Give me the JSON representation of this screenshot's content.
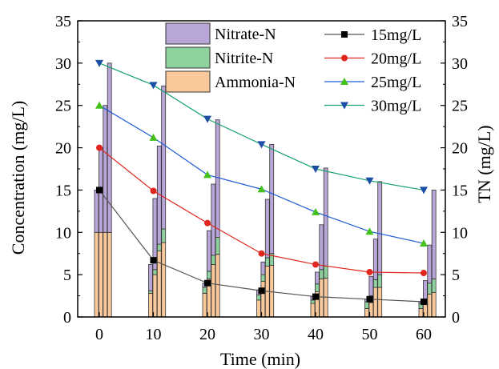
{
  "chart_data": {
    "type": "bar",
    "xlabel": "Time (min)",
    "ylabel": "Concentration (mg/L)",
    "y2label": "TN (mg/L)",
    "xlim": [
      -4,
      64
    ],
    "ylim": [
      0,
      35
    ],
    "y2lim": [
      0,
      35
    ],
    "x": [
      0,
      10,
      20,
      30,
      40,
      50,
      60
    ],
    "xticks": [
      "0",
      "10",
      "20",
      "30",
      "40",
      "50",
      "60"
    ],
    "yticks": [
      "0",
      "5",
      "10",
      "15",
      "20",
      "25",
      "30",
      "35"
    ],
    "bar_series": [
      {
        "name": "Ammonia-N",
        "color": "#f9c89b"
      },
      {
        "name": "Nitrite-N",
        "color": "#8fd19e"
      },
      {
        "name": "Nitrate-N",
        "color": "#b9a6d9"
      }
    ],
    "bar_groups": [
      {
        "initial": "15mg/L",
        "ammonia": [
          10,
          2.8,
          2.8,
          2.0,
          1.6,
          1.0,
          1.0
        ],
        "nitrite": [
          0,
          0.3,
          0.7,
          0.6,
          0.4,
          0.8,
          0.6
        ],
        "nitrate": [
          5,
          3.1,
          0.5,
          0.6,
          0.4,
          0.3,
          0.2
        ]
      },
      {
        "initial": "20mg/L",
        "ammonia": [
          10,
          5.0,
          4.5,
          4.2,
          3.0,
          1.7,
          1.5
        ],
        "nitrite": [
          0,
          0.6,
          0.9,
          0.8,
          0.9,
          0.8,
          0.6
        ],
        "nitrate": [
          10,
          8.4,
          4.8,
          1.5,
          1.4,
          2.3,
          2.2
        ]
      },
      {
        "initial": "25mg/L",
        "ammonia": [
          10,
          7.8,
          6.2,
          6.0,
          4.5,
          3.5,
          2.7
        ],
        "nitrite": [
          0,
          0.8,
          1.1,
          1.0,
          1.1,
          0.9,
          1.3
        ],
        "nitrate": [
          15,
          11.6,
          8.4,
          6.9,
          5.3,
          4.8,
          4.5
        ]
      },
      {
        "initial": "30mg/L",
        "ammonia": [
          10,
          8.8,
          7.4,
          6.1,
          4.6,
          3.5,
          2.9
        ],
        "nitrite": [
          0,
          1.6,
          2.0,
          1.4,
          1.4,
          1.5,
          1.6
        ],
        "nitrate": [
          20,
          16.9,
          13.9,
          12.9,
          11.6,
          11.0,
          10.5
        ]
      }
    ],
    "line_series": [
      {
        "name": "15mg/L",
        "color": "#555555",
        "marker_color": "#000000",
        "marker": "square",
        "values": [
          15.0,
          6.7,
          4.0,
          3.1,
          2.4,
          2.1,
          1.8
        ]
      },
      {
        "name": "20mg/L",
        "color": "#e0261e",
        "marker_color": "#e0261e",
        "marker": "circle",
        "values": [
          20.0,
          14.9,
          11.1,
          7.5,
          6.2,
          5.3,
          5.2
        ]
      },
      {
        "name": "25mg/L",
        "color": "#1f5ed6",
        "marker_color": "#45c11d",
        "marker": "triangle-up",
        "values": [
          25.0,
          21.2,
          16.8,
          15.1,
          12.4,
          10.1,
          8.7
        ]
      },
      {
        "name": "30mg/L",
        "color": "#19a36b",
        "marker_color": "#1c4ea6",
        "marker": "triangle-down",
        "values": [
          30.0,
          27.4,
          23.4,
          20.4,
          17.5,
          16.1,
          15.0
        ]
      }
    ],
    "legend_bars_placement": "top-left",
    "legend_lines_placement": "top-right",
    "grid": false
  }
}
